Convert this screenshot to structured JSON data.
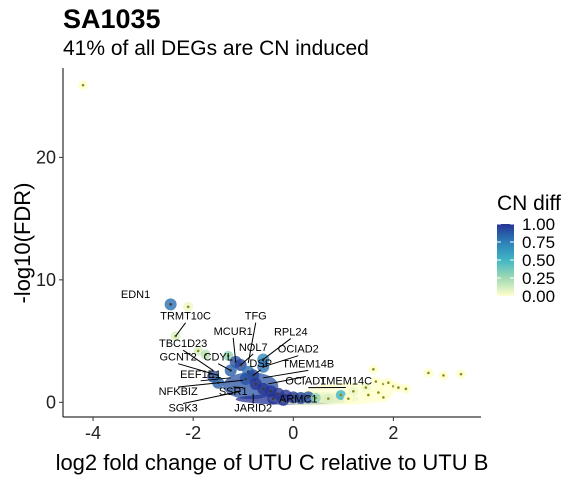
{
  "chart_data": {
    "type": "scatter",
    "title": "SA1035",
    "subtitle": "41% of all DEGs are CN induced",
    "xlabel": "log2 fold change of UTU C relative to UTU B",
    "ylabel": "-log10(FDR)",
    "xlim": [
      -4.6,
      3.75
    ],
    "ylim": [
      -1.2,
      27.3
    ],
    "x_ticks": [
      -4,
      -2,
      0,
      2
    ],
    "y_ticks": [
      0,
      10,
      20
    ],
    "grid": false,
    "legend": {
      "title": "CN diff",
      "placement": "right",
      "labels": [
        "1.00",
        "0.75",
        "0.50",
        "0.25",
        "0.00"
      ],
      "values": [
        1.0,
        0.75,
        0.5,
        0.25,
        0.0
      ],
      "colors": [
        "#253494",
        "#2c7fb8",
        "#41b6c4",
        "#a1dab4",
        "#ffffcc"
      ]
    },
    "points": [
      {
        "x": -4.2,
        "y": 25.9,
        "cn": 0.0
      },
      {
        "x": -2.45,
        "y": 8.0,
        "cn": 0.8
      },
      {
        "x": -2.1,
        "y": 7.8,
        "cn": 0.05
      },
      {
        "x": -2.35,
        "y": 5.4,
        "cn": 0.1
      },
      {
        "x": -1.9,
        "y": 4.2,
        "cn": 0.1
      },
      {
        "x": -1.75,
        "y": 3.9,
        "cn": 0.2
      },
      {
        "x": -1.3,
        "y": 3.8,
        "cn": 0.3
      },
      {
        "x": -1.15,
        "y": 3.3,
        "cn": 0.9
      },
      {
        "x": -1.05,
        "y": 3.05,
        "cn": 0.95
      },
      {
        "x": -1.25,
        "y": 2.6,
        "cn": 0.85
      },
      {
        "x": -0.9,
        "y": 2.5,
        "cn": 0.8
      },
      {
        "x": -0.6,
        "y": 3.5,
        "cn": 0.7
      },
      {
        "x": -1.6,
        "y": 2.1,
        "cn": 0.9
      },
      {
        "x": -0.6,
        "y": 2.9,
        "cn": 0.8
      },
      {
        "x": -0.8,
        "y": 2.2,
        "cn": 0.95
      },
      {
        "x": -1.5,
        "y": 1.6,
        "cn": 0.85
      },
      {
        "x": -0.95,
        "y": 1.9,
        "cn": 0.9
      },
      {
        "x": -0.75,
        "y": 1.5,
        "cn": 1.0
      },
      {
        "x": -0.6,
        "y": 1.1,
        "cn": 1.0
      },
      {
        "x": -0.45,
        "y": 0.9,
        "cn": 1.0
      },
      {
        "x": -0.3,
        "y": 0.7,
        "cn": 1.0
      },
      {
        "x": -0.15,
        "y": 0.55,
        "cn": 1.0
      },
      {
        "x": 0.0,
        "y": 0.4,
        "cn": 1.0
      },
      {
        "x": 0.15,
        "y": 0.35,
        "cn": 0.95
      },
      {
        "x": 0.3,
        "y": 0.4,
        "cn": 0.9
      },
      {
        "x": -0.4,
        "y": 0.3,
        "cn": 1.0
      },
      {
        "x": -0.2,
        "y": 0.2,
        "cn": 1.0
      },
      {
        "x": 0.45,
        "y": 0.35,
        "cn": 0.3
      },
      {
        "x": 0.7,
        "y": 0.3,
        "cn": 0.1
      },
      {
        "x": 0.95,
        "y": 0.6,
        "cn": 0.5
      },
      {
        "x": 1.2,
        "y": 0.9,
        "cn": 0.05
      },
      {
        "x": 1.45,
        "y": 1.2,
        "cn": 0.05
      },
      {
        "x": 1.6,
        "y": 2.7,
        "cn": 0.0
      },
      {
        "x": 1.65,
        "y": 1.7,
        "cn": 0.0
      },
      {
        "x": 1.8,
        "y": 1.5,
        "cn": 0.0
      },
      {
        "x": 1.9,
        "y": 1.6,
        "cn": 0.0
      },
      {
        "x": 2.0,
        "y": 1.3,
        "cn": 0.0
      },
      {
        "x": 2.1,
        "y": 1.2,
        "cn": 0.0
      },
      {
        "x": 2.25,
        "y": 1.1,
        "cn": 0.0
      },
      {
        "x": 1.7,
        "y": 0.8,
        "cn": 0.0
      },
      {
        "x": 1.5,
        "y": 0.6,
        "cn": 0.0
      },
      {
        "x": 2.7,
        "y": 2.4,
        "cn": 0.0
      },
      {
        "x": 3.0,
        "y": 2.2,
        "cn": 0.0
      },
      {
        "x": 3.35,
        "y": 2.3,
        "cn": 0.0
      },
      {
        "x": 1.8,
        "y": 0.4,
        "cn": 0.0
      },
      {
        "x": 1.1,
        "y": 0.3,
        "cn": 0.0
      }
    ],
    "cloud": [
      {
        "x": -0.85,
        "y": 1.35,
        "rx": 0.55,
        "ry": 1.1,
        "cn": 0.9
      },
      {
        "x": 0.0,
        "y": 0.25,
        "rx": 1.15,
        "ry": 0.45,
        "cn": 1.0
      },
      {
        "x": 1.1,
        "y": 0.7,
        "rx": 0.9,
        "ry": 0.9,
        "cn": 0.0
      },
      {
        "x": 0.4,
        "y": 0.3,
        "rx": 0.9,
        "ry": 0.55,
        "cn": 0.05
      }
    ],
    "labels": [
      {
        "text": "EDN1",
        "px": -2.45,
        "py": 8.0,
        "lx": -3.15,
        "ly": 8.5,
        "anchor": "middle",
        "leader": false
      },
      {
        "text": "TRMT10C",
        "px": -2.35,
        "py": 5.4,
        "lx": -2.15,
        "ly": 6.75,
        "anchor": "middle",
        "leader": true
      },
      {
        "text": "TFG",
        "px": -0.9,
        "py": 3.2,
        "lx": -0.75,
        "ly": 6.75,
        "anchor": "middle",
        "leader": true
      },
      {
        "text": "MCUR1",
        "px": -1.15,
        "py": 3.3,
        "lx": -1.2,
        "ly": 5.5,
        "anchor": "middle",
        "leader": true
      },
      {
        "text": "RPL24",
        "px": -0.6,
        "py": 3.5,
        "lx": -0.05,
        "ly": 5.45,
        "anchor": "middle",
        "leader": true
      },
      {
        "text": "TBC1D23",
        "px": -1.6,
        "py": 2.6,
        "lx": -2.2,
        "ly": 4.5,
        "anchor": "middle",
        "leader": true
      },
      {
        "text": "NOL7",
        "px": -1.05,
        "py": 3.05,
        "lx": -0.8,
        "ly": 4.2,
        "anchor": "middle",
        "leader": true
      },
      {
        "text": "OCIAD2",
        "px": -0.6,
        "py": 2.9,
        "lx": 0.1,
        "ly": 4.05,
        "anchor": "middle",
        "leader": true
      },
      {
        "text": "GCNT2",
        "px": -1.5,
        "py": 2.2,
        "lx": -2.3,
        "ly": 3.4,
        "anchor": "middle",
        "leader": true
      },
      {
        "text": "CDYL",
        "px": -1.25,
        "py": 2.6,
        "lx": -1.5,
        "ly": 3.4,
        "anchor": "middle",
        "leader": true
      },
      {
        "text": "DSP",
        "px": -0.8,
        "py": 2.2,
        "lx": -0.65,
        "ly": 2.9,
        "anchor": "middle",
        "leader": true
      },
      {
        "text": "TMEM14B",
        "px": -0.6,
        "py": 2.0,
        "lx": 0.3,
        "ly": 2.85,
        "anchor": "middle",
        "leader": true
      },
      {
        "text": "EEF1E1",
        "px": -1.25,
        "py": 2.0,
        "lx": -1.85,
        "ly": 2.0,
        "anchor": "middle",
        "leader": true
      },
      {
        "text": "OCIAD1",
        "px": -0.5,
        "py": 1.5,
        "lx": 0.25,
        "ly": 1.45,
        "anchor": "middle",
        "leader": true
      },
      {
        "text": "TMEM14C",
        "px": 0.3,
        "py": 1.2,
        "lx": 1.05,
        "ly": 1.45,
        "anchor": "middle",
        "leader": true
      },
      {
        "text": "NFKBIZ",
        "px": -1.0,
        "py": 1.8,
        "lx": -2.3,
        "ly": 0.6,
        "anchor": "middle",
        "leader": true
      },
      {
        "text": "SSR1",
        "px": -1.0,
        "py": 1.2,
        "lx": -1.2,
        "ly": 0.6,
        "anchor": "middle",
        "leader": true
      },
      {
        "text": "ARMC1",
        "px": 0.1,
        "py": 0.5,
        "lx": 0.1,
        "ly": 0.0,
        "anchor": "middle",
        "leader": false
      },
      {
        "text": "SGK3",
        "px": -1.05,
        "py": 0.9,
        "lx": -2.2,
        "ly": -0.75,
        "anchor": "middle",
        "leader": true
      },
      {
        "text": "JARID2",
        "px": -0.8,
        "py": 0.7,
        "lx": -0.8,
        "ly": -0.75,
        "anchor": "middle",
        "leader": true
      }
    ]
  }
}
